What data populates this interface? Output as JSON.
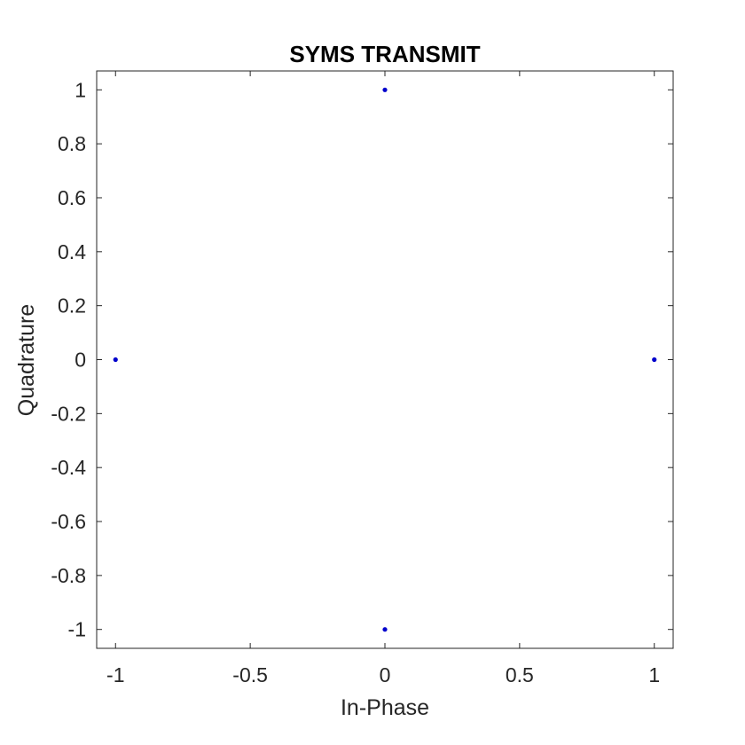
{
  "chart_data": {
    "type": "scatter",
    "title": "SYMS TRANSMIT",
    "xlabel": "In-Phase",
    "ylabel": "Quadrature",
    "xlim": [
      -1.07,
      1.07
    ],
    "ylim": [
      -1.07,
      1.07
    ],
    "x_ticks": [
      -1,
      -0.5,
      0,
      0.5,
      1
    ],
    "x_tick_labels": [
      "-1",
      "-0.5",
      "0",
      "0.5",
      "1"
    ],
    "y_ticks": [
      1,
      0.8,
      0.6,
      0.4,
      0.2,
      0,
      -0.2,
      -0.4,
      -0.6,
      -0.8,
      -1
    ],
    "y_tick_labels": [
      "1",
      "0.8",
      "0.6",
      "0.4",
      "0.2",
      "0",
      "-0.2",
      "-0.4",
      "-0.6",
      "-0.8",
      "-1"
    ],
    "grid": false,
    "box": true,
    "marker_color": "#0000cc",
    "axis_color": "#262626",
    "series": [
      {
        "points": [
          {
            "x": 0,
            "y": 1
          },
          {
            "x": -1,
            "y": 0
          },
          {
            "x": 1,
            "y": 0
          },
          {
            "x": 0,
            "y": -1
          }
        ]
      }
    ]
  }
}
